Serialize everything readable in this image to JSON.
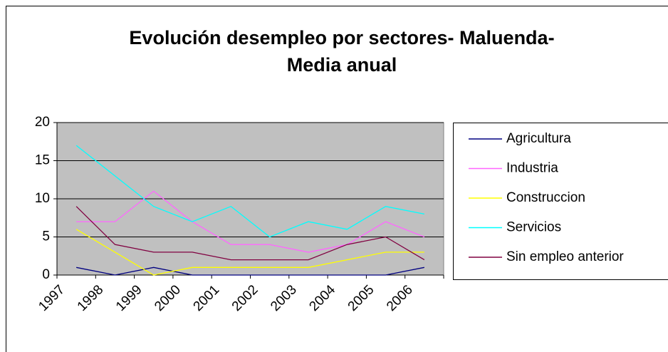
{
  "chart_data": {
    "type": "line",
    "title": [
      "Evolución desempleo por sectores- Maluenda-",
      "Media anual"
    ],
    "categories": [
      "1997",
      "1998",
      "1999",
      "2000",
      "2001",
      "2002",
      "2003",
      "2004",
      "2005",
      "2006"
    ],
    "series": [
      {
        "name": "Agricultura",
        "color": "#000080",
        "values": [
          1,
          0,
          1,
          0,
          0,
          0,
          0,
          0,
          0,
          1
        ]
      },
      {
        "name": "Industria",
        "color": "#ff66ff",
        "values": [
          7,
          7,
          11,
          7,
          4,
          4,
          3,
          4,
          7,
          5
        ]
      },
      {
        "name": "Construccion",
        "color": "#ffff00",
        "values": [
          6,
          3,
          0,
          1,
          1,
          1,
          1,
          2,
          3,
          3
        ]
      },
      {
        "name": "Servicios",
        "color": "#00ffff",
        "values": [
          17,
          13,
          9,
          7,
          9,
          5,
          7,
          6,
          9,
          8
        ]
      },
      {
        "name": "Sin empleo anterior",
        "color": "#800040",
        "values": [
          9,
          4,
          3,
          3,
          2,
          2,
          2,
          4,
          5,
          2
        ]
      }
    ],
    "ylim": [
      0,
      20
    ],
    "yticks": [
      0,
      5,
      10,
      15,
      20
    ],
    "grid": true,
    "legend": "right"
  }
}
